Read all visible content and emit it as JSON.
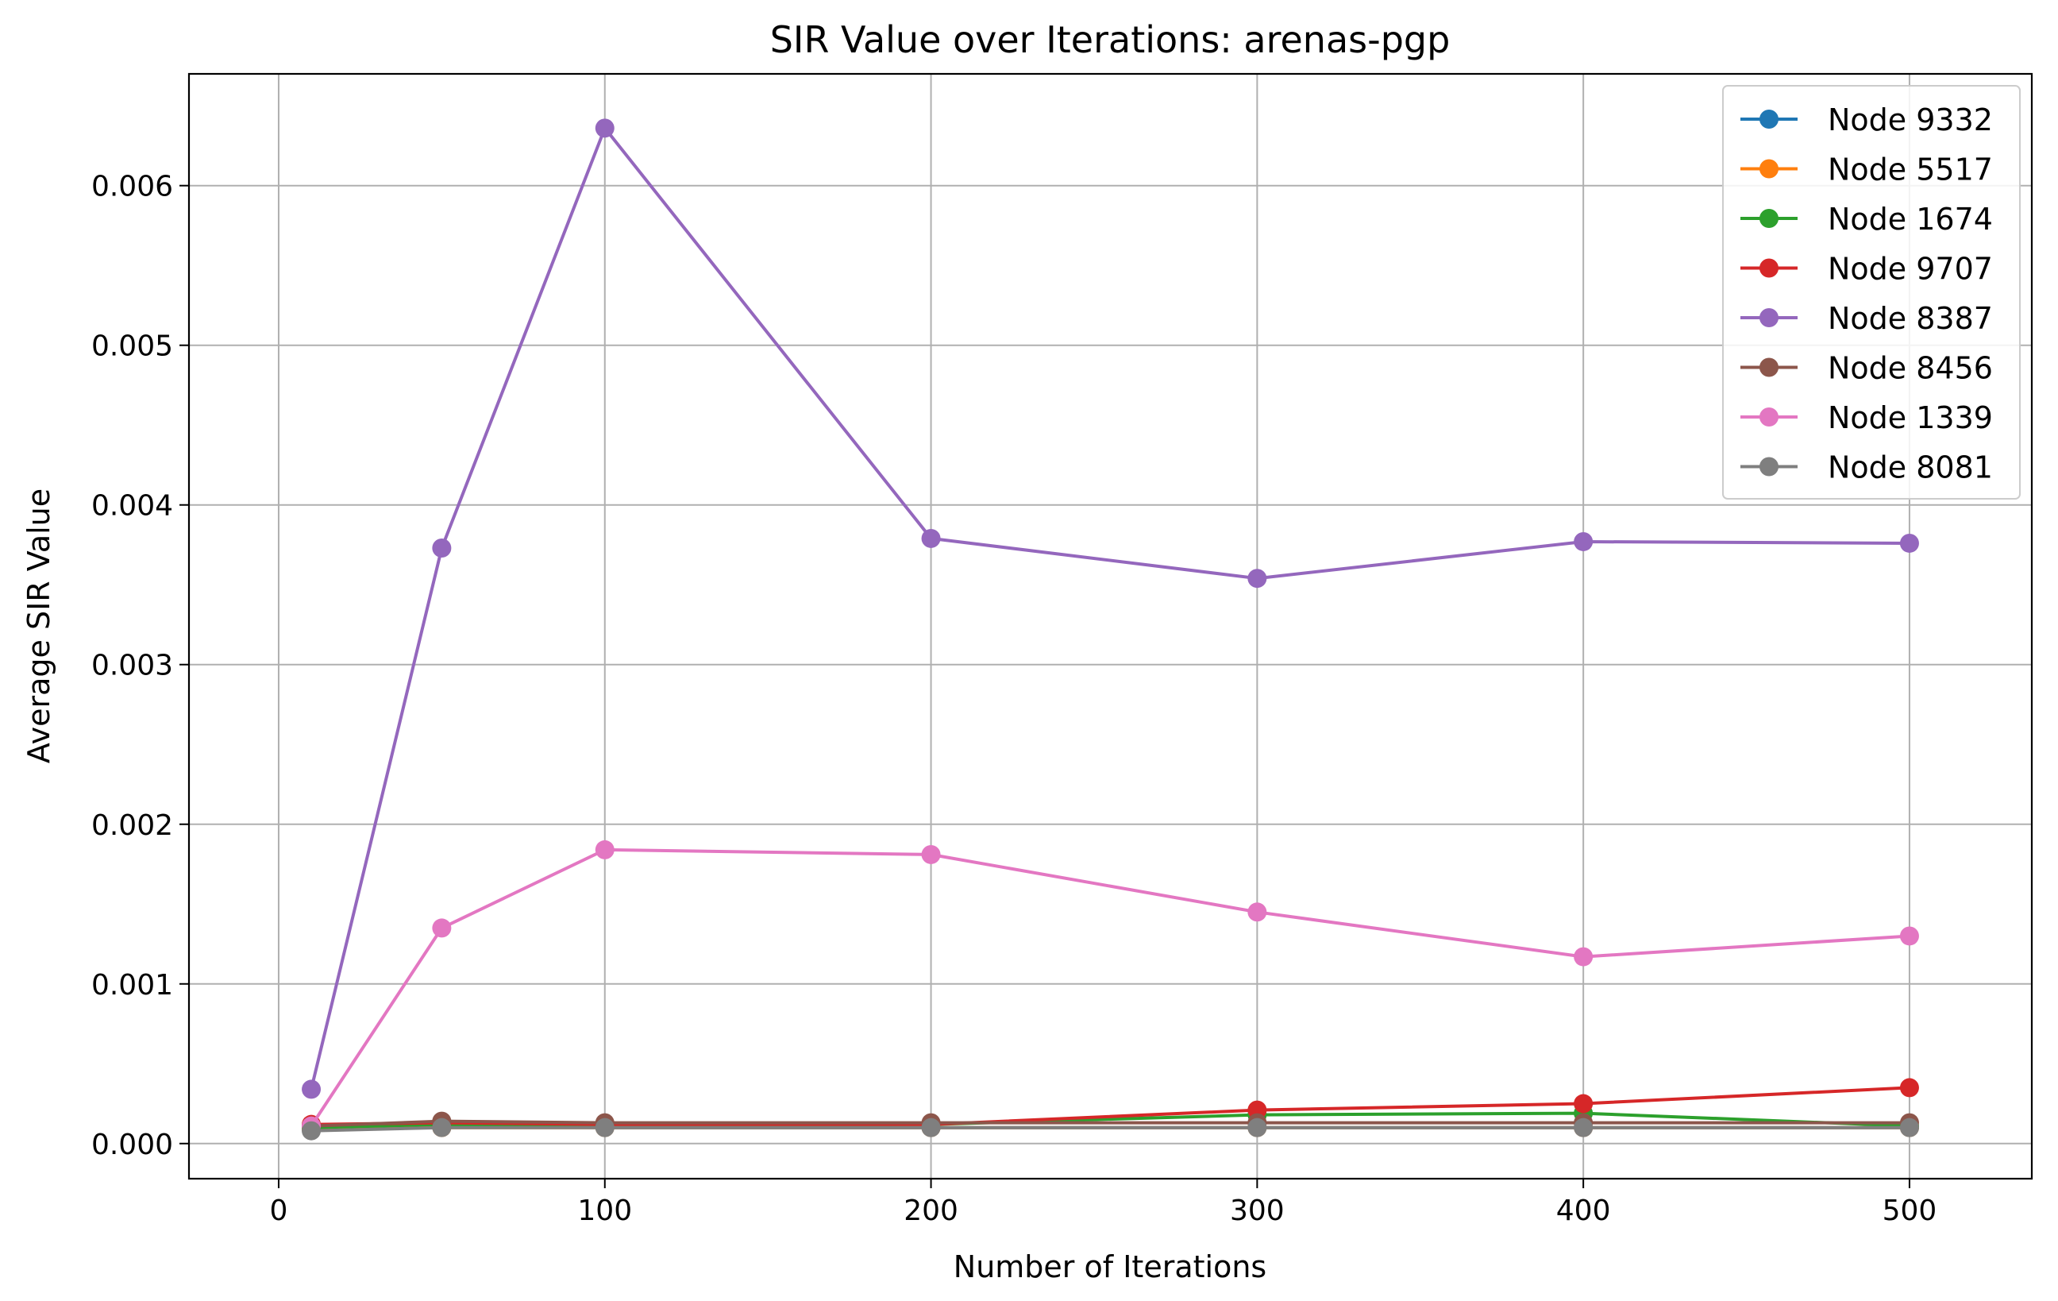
{
  "chart_data": {
    "type": "line",
    "title": "SIR Value over Iterations: arenas-pgp",
    "xlabel": "Number of Iterations",
    "ylabel": "Average SIR Value",
    "x": [
      10,
      50,
      100,
      200,
      300,
      400,
      500
    ],
    "xlim": [
      -27.5,
      537.5
    ],
    "ylim": [
      -0.00022,
      0.0067
    ],
    "xticks": [
      0,
      100,
      200,
      300,
      400,
      500
    ],
    "xtick_labels": [
      "0",
      "100",
      "200",
      "300",
      "400",
      "500"
    ],
    "yticks": [
      0,
      0.001,
      0.002,
      0.003,
      0.004,
      0.005,
      0.006
    ],
    "ytick_labels": [
      "0.000",
      "0.001",
      "0.002",
      "0.003",
      "0.004",
      "0.005",
      "0.006"
    ],
    "grid": true,
    "legend_position": "top-right",
    "series": [
      {
        "name": "Node 9332",
        "color": "#1f77b4",
        "values": [
          9e-05,
          0.00011,
          0.0001,
          0.0001,
          0.0001,
          0.0001,
          0.0001
        ]
      },
      {
        "name": "Node 5517",
        "color": "#ff7f0e",
        "values": [
          9e-05,
          0.0001,
          0.0001,
          0.0001,
          0.0001,
          0.0001,
          0.0001
        ]
      },
      {
        "name": "Node 1674",
        "color": "#2ca02c",
        "values": [
          0.0001,
          0.00012,
          0.00011,
          0.00012,
          0.00018,
          0.00019,
          0.00011
        ]
      },
      {
        "name": "Node 9707",
        "color": "#d62728",
        "values": [
          0.00012,
          0.00013,
          0.00012,
          0.00012,
          0.00021,
          0.00025,
          0.00035
        ]
      },
      {
        "name": "Node 8387",
        "color": "#9467bd",
        "values": [
          0.00034,
          0.00373,
          0.00636,
          0.00379,
          0.00354,
          0.00377,
          0.00376
        ]
      },
      {
        "name": "Node 8456",
        "color": "#8c564b",
        "values": [
          0.00011,
          0.00014,
          0.00013,
          0.00013,
          0.00013,
          0.00013,
          0.00013
        ]
      },
      {
        "name": "Node 1339",
        "color": "#e377c2",
        "values": [
          0.00011,
          0.00135,
          0.00184,
          0.00181,
          0.00145,
          0.00117,
          0.0013
        ]
      },
      {
        "name": "Node 8081",
        "color": "#7f7f7f",
        "values": [
          8e-05,
          0.0001,
          0.0001,
          0.0001,
          0.0001,
          0.0001,
          0.0001
        ]
      }
    ]
  }
}
